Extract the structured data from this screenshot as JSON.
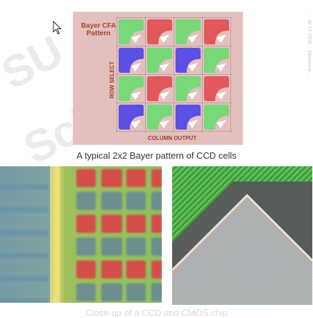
{
  "watermark": {
    "line1": "SU",
    "line2": "Scienc"
  },
  "side_note": "... 40 12-2009 ... Elektronik ...",
  "diagram": {
    "title_line1": "Bayer CFA",
    "title_line2": "Pattern",
    "row_label": "ROW SELECT",
    "column_label": "COLUMN OUTPUT",
    "colors": {
      "red": "#e0585a",
      "green": "#77d977",
      "blue": "#5c4fe3",
      "panel": "#e3c0be",
      "grid_line": "#b7a0a0"
    },
    "cells": [
      [
        "green",
        "red",
        "green",
        "red"
      ],
      [
        "blue",
        "green",
        "blue",
        "green"
      ],
      [
        "green",
        "red",
        "green",
        "red"
      ],
      [
        "blue",
        "green",
        "blue",
        "green"
      ]
    ]
  },
  "captions": {
    "top": "A typical 2x2 Bayer pattern of CCD cells",
    "bottom": "Close-up of a CCD and CMOS chip"
  },
  "photos": {
    "left": {
      "subject": "CCD sensor micrograph"
    },
    "right": {
      "subject": "CMOS chip micrograph"
    }
  }
}
